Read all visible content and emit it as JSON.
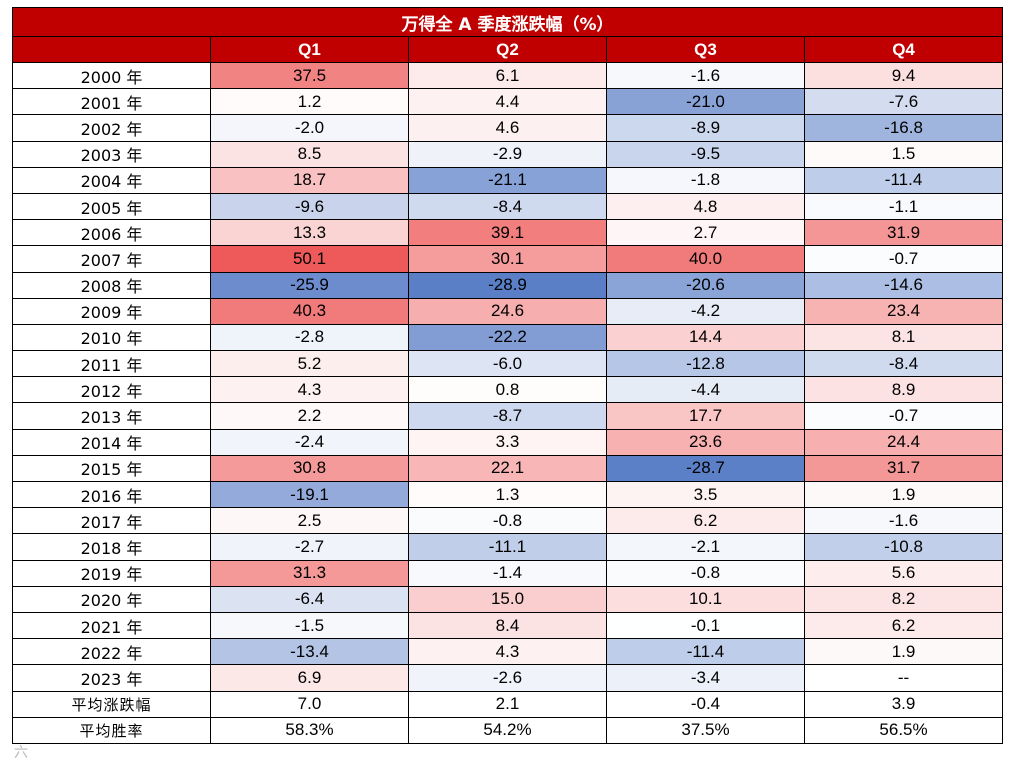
{
  "title": "万得全 A 季度涨跌幅（%）",
  "headers": [
    "Q1",
    "Q2",
    "Q3",
    "Q4"
  ],
  "rows": [
    {
      "year": "2000 年",
      "values": [
        "37.5",
        "6.1",
        "-1.6",
        "9.4"
      ]
    },
    {
      "year": "2001 年",
      "values": [
        "1.2",
        "4.4",
        "-21.0",
        "-7.6"
      ]
    },
    {
      "year": "2002 年",
      "values": [
        "-2.0",
        "4.6",
        "-8.9",
        "-16.8"
      ]
    },
    {
      "year": "2003 年",
      "values": [
        "8.5",
        "-2.9",
        "-9.5",
        "1.5"
      ]
    },
    {
      "year": "2004 年",
      "values": [
        "18.7",
        "-21.1",
        "-1.8",
        "-11.4"
      ]
    },
    {
      "year": "2005 年",
      "values": [
        "-9.6",
        "-8.4",
        "4.8",
        "-1.1"
      ]
    },
    {
      "year": "2006 年",
      "values": [
        "13.3",
        "39.1",
        "2.7",
        "31.9"
      ]
    },
    {
      "year": "2007 年",
      "values": [
        "50.1",
        "30.1",
        "40.0",
        "-0.7"
      ]
    },
    {
      "year": "2008 年",
      "values": [
        "-25.9",
        "-28.9",
        "-20.6",
        "-14.6"
      ]
    },
    {
      "year": "2009 年",
      "values": [
        "40.3",
        "24.6",
        "-4.2",
        "23.4"
      ]
    },
    {
      "year": "2010 年",
      "values": [
        "-2.8",
        "-22.2",
        "14.4",
        "8.1"
      ]
    },
    {
      "year": "2011 年",
      "values": [
        "5.2",
        "-6.0",
        "-12.8",
        "-8.4"
      ]
    },
    {
      "year": "2012 年",
      "values": [
        "4.3",
        "0.8",
        "-4.4",
        "8.9"
      ]
    },
    {
      "year": "2013 年",
      "values": [
        "2.2",
        "-8.7",
        "17.7",
        "-0.7"
      ]
    },
    {
      "year": "2014 年",
      "values": [
        "-2.4",
        "3.3",
        "23.6",
        "24.4"
      ]
    },
    {
      "year": "2015 年",
      "values": [
        "30.8",
        "22.1",
        "-28.7",
        "31.7"
      ]
    },
    {
      "year": "2016 年",
      "values": [
        "-19.1",
        "1.3",
        "3.5",
        "1.9"
      ]
    },
    {
      "year": "2017 年",
      "values": [
        "2.5",
        "-0.8",
        "6.2",
        "-1.6"
      ]
    },
    {
      "year": "2018 年",
      "values": [
        "-2.7",
        "-11.1",
        "-2.1",
        "-10.8"
      ]
    },
    {
      "year": "2019 年",
      "values": [
        "31.3",
        "-1.4",
        "-0.8",
        "5.6"
      ]
    },
    {
      "year": "2020 年",
      "values": [
        "-6.4",
        "15.0",
        "10.1",
        "8.2"
      ]
    },
    {
      "year": "2021 年",
      "values": [
        "-1.5",
        "8.4",
        "-0.1",
        "6.2"
      ]
    },
    {
      "year": "2022 年",
      "values": [
        "-13.4",
        "4.3",
        "-11.4",
        "1.9"
      ]
    },
    {
      "year": "2023 年",
      "values": [
        "6.9",
        "-2.6",
        "-3.4",
        "--"
      ]
    }
  ],
  "summary": [
    {
      "label": "平均涨跌幅",
      "values": [
        "7.0",
        "2.1",
        "-0.4",
        "3.9"
      ]
    },
    {
      "label": "平均胜率",
      "values": [
        "58.3%",
        "54.2%",
        "37.5%",
        "56.5%"
      ]
    }
  ],
  "colors": {
    "header_bg": "#c00000",
    "header_text": "#ffffff",
    "positive_max": "#ee5a5a",
    "negative_max": "#5b7fc7",
    "neutral": "#ffffff"
  },
  "watermark": "六"
}
